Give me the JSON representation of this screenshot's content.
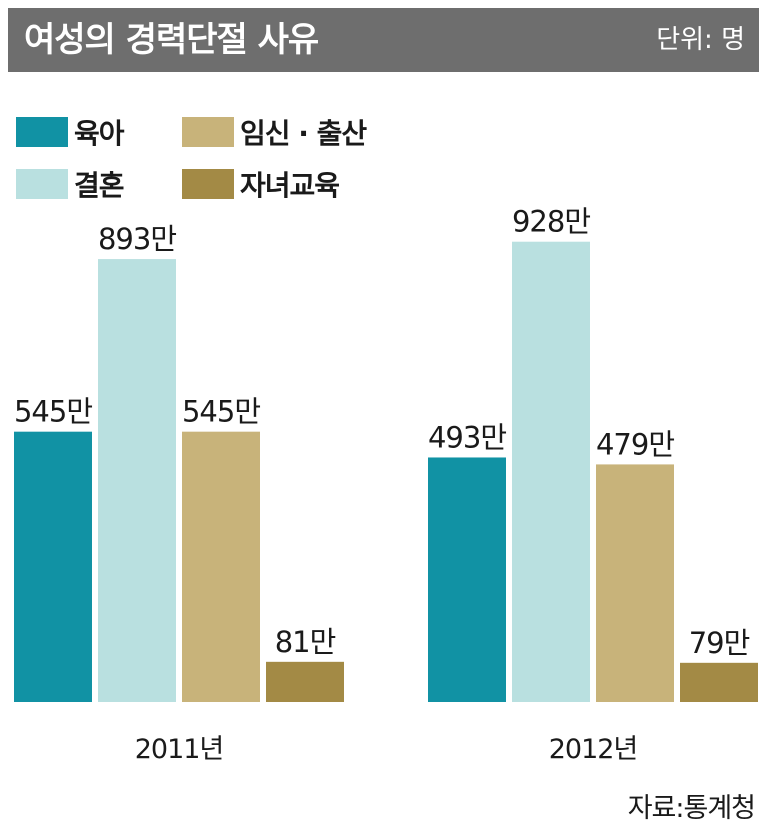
{
  "header": {
    "title": "여성의 경력단절 사유",
    "unit": "단위: 명"
  },
  "source": "자료:통계청",
  "colors": {
    "header_bg": "#6e6e6e",
    "육아": "#1192a4",
    "결혼": "#b9e0e0",
    "임신·출산": "#c8b37a",
    "자녀교육": "#a38a45"
  },
  "legend": [
    {
      "label": "육아",
      "color": "#1192a4"
    },
    {
      "label": "임신 · 출산",
      "color": "#c8b37a"
    },
    {
      "label": "결혼",
      "color": "#b9e0e0"
    },
    {
      "label": "자녀교육",
      "color": "#a38a45"
    }
  ],
  "chart_data": {
    "type": "bar",
    "title": "여성의 경력단절 사유",
    "unit": "단위: 명",
    "categories": [
      "2011년",
      "2012년"
    ],
    "series": [
      {
        "name": "육아",
        "values": [
          5450000,
          4930000
        ],
        "labels": [
          "545만",
          "493만"
        ],
        "color": "#1192a4"
      },
      {
        "name": "결혼",
        "values": [
          8930000,
          9280000
        ],
        "labels": [
          "893만",
          "928만"
        ],
        "color": "#b9e0e0"
      },
      {
        "name": "임신 · 출산",
        "values": [
          5450000,
          4790000
        ],
        "labels": [
          "545만",
          "479만"
        ],
        "color": "#c8b37a"
      },
      {
        "name": "자녀교육",
        "values": [
          810000,
          790000
        ],
        "labels": [
          "81만",
          "79만"
        ],
        "color": "#a38a45"
      }
    ],
    "ylim": [
      0,
      10000000
    ],
    "grid": false,
    "legend_position": "top-left"
  }
}
